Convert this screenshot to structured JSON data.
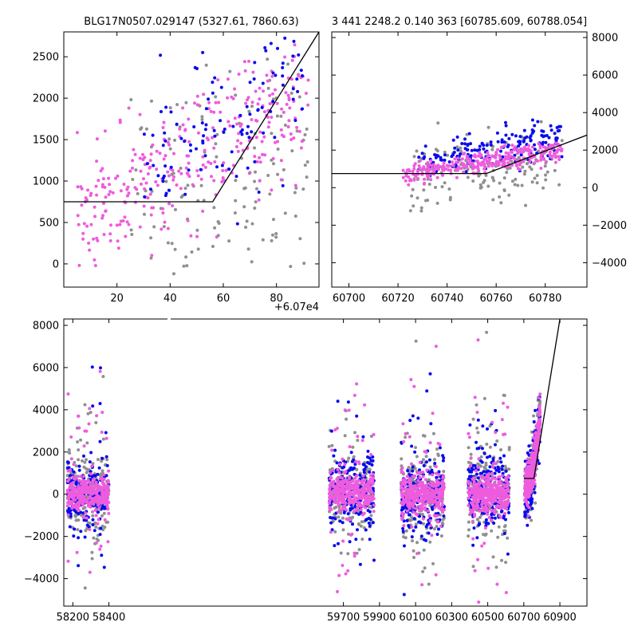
{
  "colors": {
    "gray": "#909090",
    "blue": "#0a0aee",
    "pink": "#ee5cde",
    "model": "#000000"
  },
  "chart_data": [
    {
      "id": "top-left",
      "type": "scatter",
      "title": "BLG17N0507.029147 (5327.61, 7860.63)",
      "x_offset_label": "+6.07e4",
      "xlim": [
        0,
        96
      ],
      "ylim": [
        -280,
        2800
      ],
      "xticks": [
        20,
        40,
        60,
        80
      ],
      "xtick_labels": [
        "20",
        "40",
        "60",
        "80"
      ],
      "yticks": [
        0,
        500,
        1000,
        1500,
        2000,
        2500
      ],
      "ytick_labels": [
        "0",
        "500",
        "1000",
        "1500",
        "2000",
        "2500"
      ],
      "model_line": {
        "x": [
          0,
          56,
          96
        ],
        "y": [
          750,
          750,
          2800
        ]
      },
      "point_clouds": [
        {
          "name": "gray",
          "count": 140,
          "x_range": [
            25,
            92
          ],
          "y_center": [
            600,
            1500
          ],
          "y_spread": 650
        },
        {
          "name": "pink",
          "count": 330,
          "x_range": [
            5,
            92
          ],
          "y_center": [
            550,
            2000
          ],
          "y_spread": 380
        },
        {
          "name": "blue",
          "count": 110,
          "x_range": [
            30,
            90
          ],
          "y_center": [
            1000,
            2300
          ],
          "y_spread": 450
        }
      ]
    },
    {
      "id": "top-right",
      "type": "scatter",
      "title": "3 441 2248.2 0.140 363 [60785.609, 60788.054]",
      "xlim": [
        60693,
        60797
      ],
      "ylim": [
        -5300,
        8300
      ],
      "xticks": [
        60700,
        60720,
        60740,
        60760,
        60780
      ],
      "xtick_labels": [
        "60700",
        "60720",
        "60740",
        "60760",
        "60780"
      ],
      "yticks": [
        -4000,
        -2000,
        0,
        2000,
        4000,
        6000,
        8000
      ],
      "ytick_labels": [
        "−4000",
        "−2000",
        "0",
        "2000",
        "4000",
        "6000",
        "8000"
      ],
      "model_line": {
        "x": [
          60693,
          60756,
          60797
        ],
        "y": [
          750,
          750,
          2800
        ]
      },
      "point_clouds": [
        {
          "name": "gray",
          "count": 160,
          "x_range": [
            60725,
            60787
          ],
          "y_center": [
            400,
            1500
          ],
          "y_spread": 900
        },
        {
          "name": "blue",
          "count": 170,
          "x_range": [
            60728,
            60787
          ],
          "y_center": [
            1400,
            2700
          ],
          "y_spread": 500
        },
        {
          "name": "pink",
          "count": 300,
          "x_range": [
            60722,
            60787
          ],
          "y_center": [
            650,
            2000
          ],
          "y_spread": 300
        }
      ]
    },
    {
      "id": "bottom",
      "type": "scatter",
      "xlim": [
        58150,
        61050
      ],
      "ylim": [
        -5300,
        8300
      ],
      "xticks": [
        58200,
        58400,
        59700,
        59900,
        60100,
        60300,
        60500,
        60700,
        60900
      ],
      "xtick_labels": [
        "58200",
        "58400",
        "59700",
        "59900",
        "60100",
        "60300",
        "60500",
        "60700",
        "60900"
      ],
      "yticks": [
        -4000,
        -2000,
        0,
        2000,
        4000,
        6000,
        8000
      ],
      "ytick_labels": [
        "−4000",
        "−2000",
        "0",
        "2000",
        "4000",
        "6000",
        "8000"
      ],
      "model_line": {
        "x": [
          60700,
          60756,
          60900
        ],
        "y": [
          750,
          750,
          8300
        ]
      },
      "seasons": [
        {
          "x_range": [
            58170,
            58400
          ],
          "y_center": 0,
          "y_spread": 700
        },
        {
          "x_range": [
            59620,
            59870
          ],
          "y_center": 50,
          "y_spread": 750
        },
        {
          "x_range": [
            60020,
            60260
          ],
          "y_center": 0,
          "y_spread": 800
        },
        {
          "x_range": [
            60390,
            60620
          ],
          "y_center": 0,
          "y_spread": 800
        },
        {
          "x_range": [
            60705,
            60790
          ],
          "y_center": 1000,
          "y_spread": 900
        }
      ]
    }
  ]
}
